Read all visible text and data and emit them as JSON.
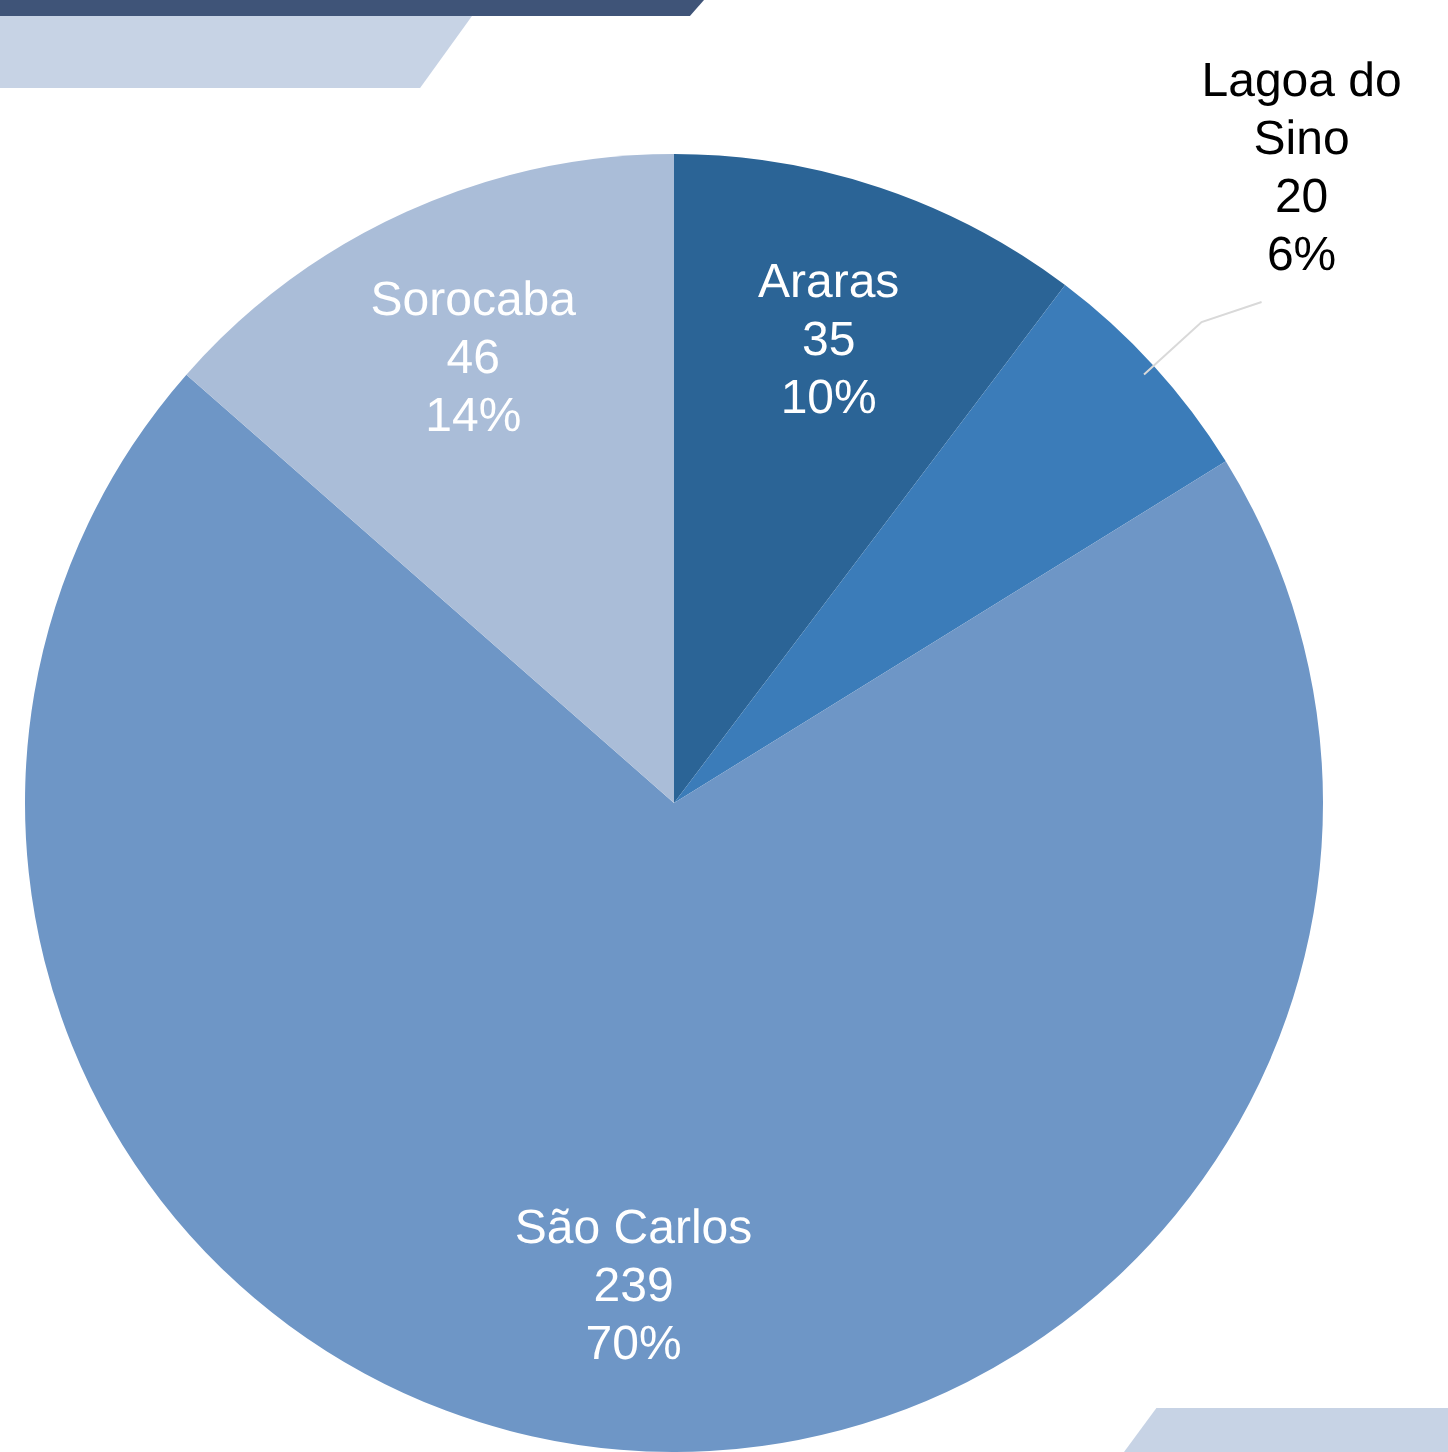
{
  "chart_data": {
    "type": "pie",
    "categories": [
      "Araras",
      "Lagoa do Sino",
      "São Carlos",
      "Sorocaba"
    ],
    "values": [
      35,
      20,
      239,
      46
    ],
    "colors": [
      "#2b6496",
      "#3b7cb9",
      "#6e96c6",
      "#aabdd8"
    ],
    "value_labels": [
      "35\n10%",
      "20\n6%",
      "239\n70%",
      "46\n14%"
    ],
    "legend": false
  }
}
